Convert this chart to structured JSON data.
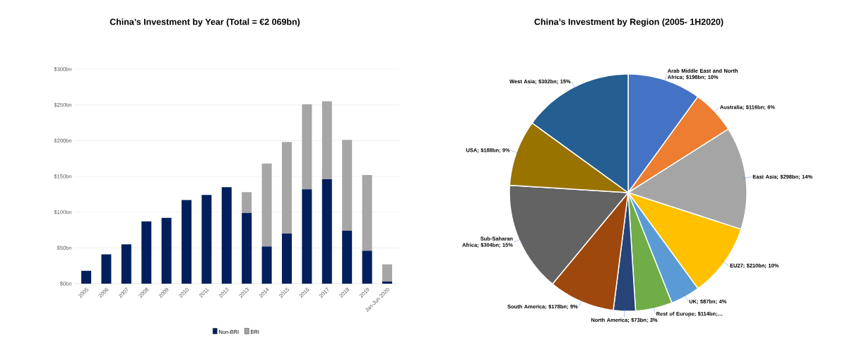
{
  "chart_data": [
    {
      "type": "bar",
      "title": "China’s Investment by Year (Total = €2 069bn)",
      "categories": [
        "2005",
        "2006",
        "2007",
        "2008",
        "2009",
        "2010",
        "2011",
        "2012",
        "2013",
        "2014",
        "2015",
        "2016",
        "2017",
        "2018",
        "2019",
        "Jan-Jun 2020"
      ],
      "series": [
        {
          "name": "Non-BRI",
          "color": "#001f5c",
          "values": [
            18,
            41,
            55,
            87,
            92,
            117,
            124,
            135,
            99,
            52,
            70,
            132,
            146,
            74,
            46,
            3
          ]
        },
        {
          "name": "BRI",
          "color": "#a6a6a6",
          "values": [
            0,
            0,
            0,
            0,
            0,
            0,
            0,
            0,
            29,
            116,
            128,
            119,
            109,
            127,
            106,
            24
          ]
        }
      ],
      "stacked": true,
      "ylim": [
        0,
        300
      ],
      "yticks": [
        {
          "value": 0,
          "label": "$0bn"
        },
        {
          "value": 50,
          "label": "$50bn"
        },
        {
          "value": 100,
          "label": "$100bn"
        },
        {
          "value": 150,
          "label": "$150bn"
        },
        {
          "value": 200,
          "label": "$200bn"
        },
        {
          "value": 250,
          "label": "$250bn"
        },
        {
          "value": 300,
          "label": "$300bn"
        }
      ],
      "grid": "y",
      "legend": "bottom"
    },
    {
      "type": "pie",
      "title": "China’s Investment by Region (2005- 1H2020)",
      "categories": [
        "Arab Middle East and North Africa; $198bn; 10%",
        "Australia; $116bn; 6%",
        "East Asia; $298bn; 14%",
        "EU27; $210bn; 10%",
        "UK; $87bn; 4%",
        "Rest of Europe; $114bn;…",
        "North America; $73bn; 3%",
        "South America; $178bn; 9%",
        "Sub-Saharan Africa; $304bn; 15%",
        "USA; $188bn; 9%",
        "West Asia; $302bn; 15%"
      ],
      "values": [
        10,
        6,
        14,
        10,
        4,
        5,
        3,
        9,
        15,
        9,
        15
      ],
      "colors": [
        "#4472c4",
        "#ed7d31",
        "#a5a5a5",
        "#ffc000",
        "#5b9bd5",
        "#70ad47",
        "#264478",
        "#9e480e",
        "#636363",
        "#997300",
        "#255e91"
      ]
    }
  ]
}
